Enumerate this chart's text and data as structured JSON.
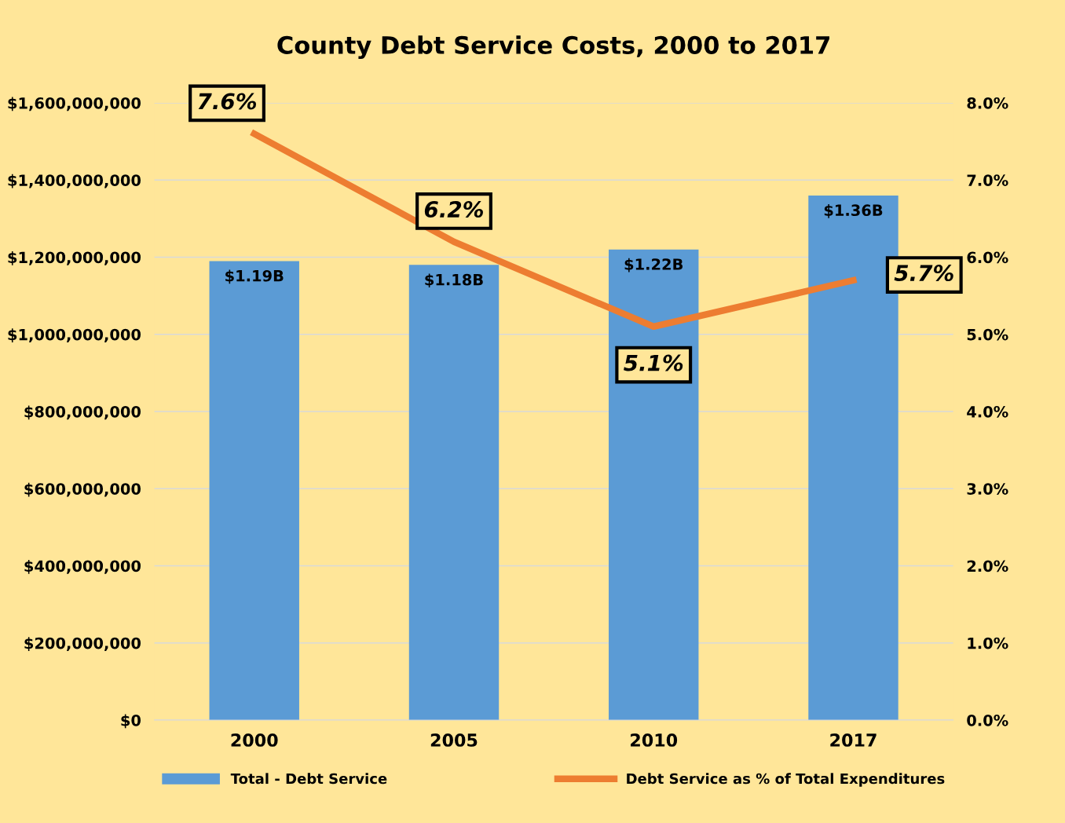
{
  "chart_data": {
    "type": "bar",
    "title": "County Debt Service Costs, 2000 to 2017",
    "categories": [
      "2000",
      "2005",
      "2010",
      "2017"
    ],
    "series": [
      {
        "name": "Total - Debt Service",
        "color": "#5b9bd5",
        "values": [
          1190000000,
          1180000000,
          1220000000,
          1360000000
        ],
        "value_labels": [
          "$1.19B",
          "$1.18B",
          "$1.22B",
          "$1.36B"
        ]
      },
      {
        "name": "Debt Service as % of Total Expenditures",
        "type": "line",
        "axis": "y2",
        "color": "#ed7d31",
        "values": [
          7.6,
          6.2,
          5.1,
          5.7
        ],
        "value_labels": [
          "7.6%",
          "6.2%",
          "5.1%",
          "5.7%"
        ]
      }
    ],
    "ylim": [
      0,
      1600000000
    ],
    "yticks": [
      {
        "value": 0,
        "label": "$0"
      },
      {
        "value": 200000000,
        "label": "$200,000,000"
      },
      {
        "value": 400000000,
        "label": "$400,000,000"
      },
      {
        "value": 600000000,
        "label": "$600,000,000"
      },
      {
        "value": 800000000,
        "label": "$800,000,000"
      },
      {
        "value": 1000000000,
        "label": "$1,000,000,000"
      },
      {
        "value": 1200000000,
        "label": "$1,200,000,000"
      },
      {
        "value": 1400000000,
        "label": "$1,400,000,000"
      },
      {
        "value": 1600000000,
        "label": "$1,600,000,000"
      }
    ],
    "y2lim": [
      0,
      8
    ],
    "y2ticks": [
      {
        "value": 0,
        "label": "0.0%"
      },
      {
        "value": 1,
        "label": "1.0%"
      },
      {
        "value": 2,
        "label": "2.0%"
      },
      {
        "value": 3,
        "label": "3.0%"
      },
      {
        "value": 4,
        "label": "4.0%"
      },
      {
        "value": 5,
        "label": "5.0%"
      },
      {
        "value": 6,
        "label": "6.0%"
      },
      {
        "value": 7,
        "label": "7.0%"
      },
      {
        "value": 8,
        "label": "8.0%"
      }
    ],
    "grid": "y",
    "legend": "bottom",
    "marker": "none",
    "line_style": "solid"
  }
}
